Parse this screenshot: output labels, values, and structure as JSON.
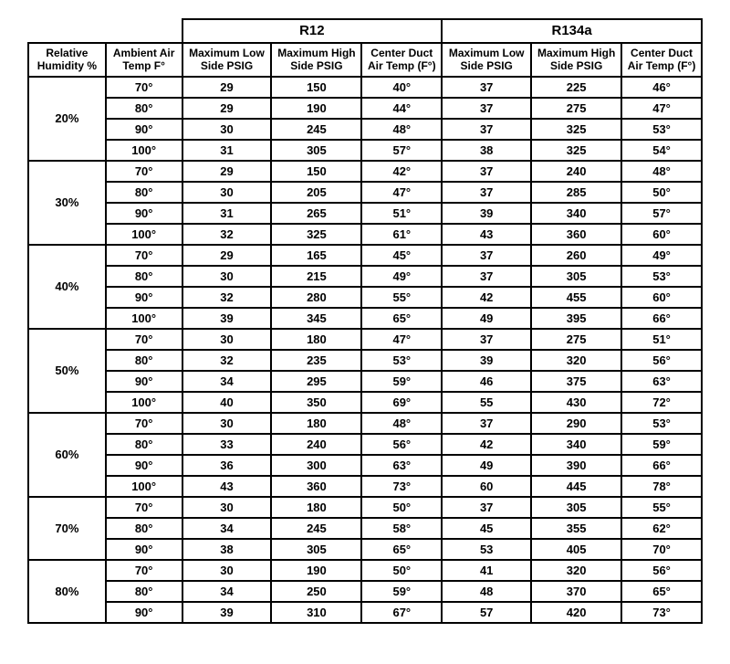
{
  "style": {
    "type": "table",
    "background_color": "#ffffff",
    "border_color": "#000000",
    "text_color": "#000000",
    "font_family": "Arial, sans-serif",
    "header_fontsize": 12,
    "cell_fontsize": 13,
    "group_header_fontsize": 15,
    "border_width": 2,
    "columns": [
      {
        "key": "humidity",
        "label": "Relative Humidity %"
      },
      {
        "key": "ambient",
        "label": "Ambient Air Temp F°"
      },
      {
        "key": "r12_low",
        "label": "Maximum Low Side PSIG"
      },
      {
        "key": "r12_high",
        "label": "Maximum High Side PSIG"
      },
      {
        "key": "r12_duct",
        "label": "Center Duct Air Temp (F°)"
      },
      {
        "key": "r134a_low",
        "label": "Maximum Low Side PSIG"
      },
      {
        "key": "r134a_high",
        "label": "Maximum High Side PSIG"
      },
      {
        "key": "r134a_duct",
        "label": "Center Duct Air Temp (F°)"
      }
    ]
  },
  "headers": {
    "group_r12": "R12",
    "group_r134a": "R134a",
    "humidity": "Relative Humidity %",
    "ambient": "Ambient Air Temp F°",
    "low_side": "Maximum Low Side PSIG",
    "high_side": "Maximum High Side PSIG",
    "duct": "Center Duct Air Temp (F°)"
  },
  "groups": [
    {
      "humidity": "20%",
      "rows": [
        {
          "ambient": "70°",
          "r12_low": "29",
          "r12_high": "150",
          "r12_duct": "40°",
          "a_low": "37",
          "a_high": "225",
          "a_duct": "46°"
        },
        {
          "ambient": "80°",
          "r12_low": "29",
          "r12_high": "190",
          "r12_duct": "44°",
          "a_low": "37",
          "a_high": "275",
          "a_duct": "47°"
        },
        {
          "ambient": "90°",
          "r12_low": "30",
          "r12_high": "245",
          "r12_duct": "48°",
          "a_low": "37",
          "a_high": "325",
          "a_duct": "53°"
        },
        {
          "ambient": "100°",
          "r12_low": "31",
          "r12_high": "305",
          "r12_duct": "57°",
          "a_low": "38",
          "a_high": "325",
          "a_duct": "54°"
        }
      ]
    },
    {
      "humidity": "30%",
      "rows": [
        {
          "ambient": "70°",
          "r12_low": "29",
          "r12_high": "150",
          "r12_duct": "42°",
          "a_low": "37",
          "a_high": "240",
          "a_duct": "48°"
        },
        {
          "ambient": "80°",
          "r12_low": "30",
          "r12_high": "205",
          "r12_duct": "47°",
          "a_low": "37",
          "a_high": "285",
          "a_duct": "50°"
        },
        {
          "ambient": "90°",
          "r12_low": "31",
          "r12_high": "265",
          "r12_duct": "51°",
          "a_low": "39",
          "a_high": "340",
          "a_duct": "57°"
        },
        {
          "ambient": "100°",
          "r12_low": "32",
          "r12_high": "325",
          "r12_duct": "61°",
          "a_low": "43",
          "a_high": "360",
          "a_duct": "60°"
        }
      ]
    },
    {
      "humidity": "40%",
      "rows": [
        {
          "ambient": "70°",
          "r12_low": "29",
          "r12_high": "165",
          "r12_duct": "45°",
          "a_low": "37",
          "a_high": "260",
          "a_duct": "49°"
        },
        {
          "ambient": "80°",
          "r12_low": "30",
          "r12_high": "215",
          "r12_duct": "49°",
          "a_low": "37",
          "a_high": "305",
          "a_duct": "53°"
        },
        {
          "ambient": "90°",
          "r12_low": "32",
          "r12_high": "280",
          "r12_duct": "55°",
          "a_low": "42",
          "a_high": "455",
          "a_duct": "60°"
        },
        {
          "ambient": "100°",
          "r12_low": "39",
          "r12_high": "345",
          "r12_duct": "65°",
          "a_low": "49",
          "a_high": "395",
          "a_duct": "66°"
        }
      ]
    },
    {
      "humidity": "50%",
      "rows": [
        {
          "ambient": "70°",
          "r12_low": "30",
          "r12_high": "180",
          "r12_duct": "47°",
          "a_low": "37",
          "a_high": "275",
          "a_duct": "51°"
        },
        {
          "ambient": "80°",
          "r12_low": "32",
          "r12_high": "235",
          "r12_duct": "53°",
          "a_low": "39",
          "a_high": "320",
          "a_duct": "56°"
        },
        {
          "ambient": "90°",
          "r12_low": "34",
          "r12_high": "295",
          "r12_duct": "59°",
          "a_low": "46",
          "a_high": "375",
          "a_duct": "63°"
        },
        {
          "ambient": "100°",
          "r12_low": "40",
          "r12_high": "350",
          "r12_duct": "69°",
          "a_low": "55",
          "a_high": "430",
          "a_duct": "72°"
        }
      ]
    },
    {
      "humidity": "60%",
      "rows": [
        {
          "ambient": "70°",
          "r12_low": "30",
          "r12_high": "180",
          "r12_duct": "48°",
          "a_low": "37",
          "a_high": "290",
          "a_duct": "53°"
        },
        {
          "ambient": "80°",
          "r12_low": "33",
          "r12_high": "240",
          "r12_duct": "56°",
          "a_low": "42",
          "a_high": "340",
          "a_duct": "59°"
        },
        {
          "ambient": "90°",
          "r12_low": "36",
          "r12_high": "300",
          "r12_duct": "63°",
          "a_low": "49",
          "a_high": "390",
          "a_duct": "66°"
        },
        {
          "ambient": "100°",
          "r12_low": "43",
          "r12_high": "360",
          "r12_duct": "73°",
          "a_low": "60",
          "a_high": "445",
          "a_duct": "78°"
        }
      ]
    },
    {
      "humidity": "70%",
      "rows": [
        {
          "ambient": "70°",
          "r12_low": "30",
          "r12_high": "180",
          "r12_duct": "50°",
          "a_low": "37",
          "a_high": "305",
          "a_duct": "55°"
        },
        {
          "ambient": "80°",
          "r12_low": "34",
          "r12_high": "245",
          "r12_duct": "58°",
          "a_low": "45",
          "a_high": "355",
          "a_duct": "62°"
        },
        {
          "ambient": "90°",
          "r12_low": "38",
          "r12_high": "305",
          "r12_duct": "65°",
          "a_low": "53",
          "a_high": "405",
          "a_duct": "70°"
        }
      ]
    },
    {
      "humidity": "80%",
      "rows": [
        {
          "ambient": "70°",
          "r12_low": "30",
          "r12_high": "190",
          "r12_duct": "50°",
          "a_low": "41",
          "a_high": "320",
          "a_duct": "56°"
        },
        {
          "ambient": "80°",
          "r12_low": "34",
          "r12_high": "250",
          "r12_duct": "59°",
          "a_low": "48",
          "a_high": "370",
          "a_duct": "65°"
        },
        {
          "ambient": "90°",
          "r12_low": "39",
          "r12_high": "310",
          "r12_duct": "67°",
          "a_low": "57",
          "a_high": "420",
          "a_duct": "73°"
        }
      ]
    }
  ]
}
